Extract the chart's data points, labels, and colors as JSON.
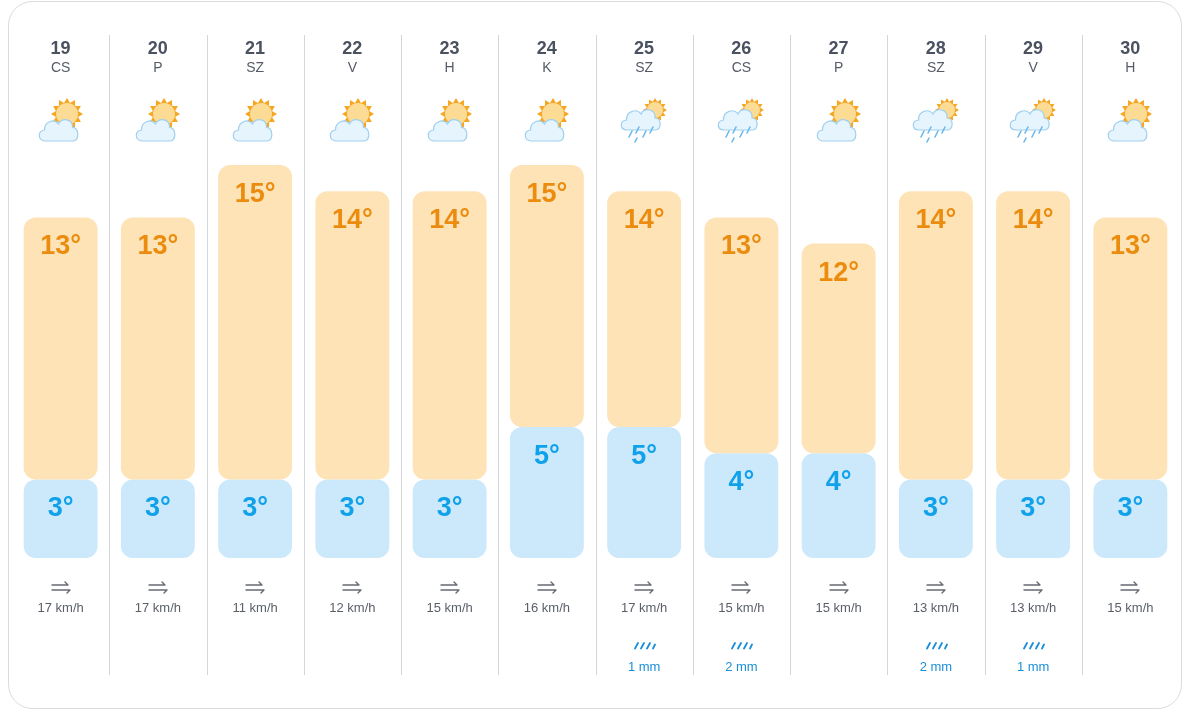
{
  "chart_data": {
    "type": "bar",
    "categories": [
      "19\nCS",
      "20\nP",
      "21\nSZ",
      "22\nV",
      "23\nH",
      "24\nK",
      "25\nSZ",
      "26\nCS",
      "27\nP",
      "28\nSZ",
      "29\nV",
      "30\nH"
    ],
    "stacked": true,
    "series": [
      {
        "color": "#cce8fb",
        "values": [
          3,
          3,
          3,
          3,
          3,
          5,
          5,
          4,
          4,
          3,
          3,
          3
        ],
        "value_labels": [
          "3°",
          "3°",
          "3°",
          "3°",
          "3°",
          "5°",
          "5°",
          "4°",
          "4°",
          "3°",
          "3°",
          "3°"
        ]
      },
      {
        "color": "#fde3b6",
        "values": [
          10,
          10,
          12,
          11,
          11,
          10,
          9,
          9,
          8,
          11,
          11,
          10
        ]
      }
    ],
    "totals": [
      "13°",
      "13°",
      "15°",
      "14°",
      "14°",
      "15°",
      "14°",
      "13°",
      "12°",
      "14°",
      "14°",
      "13°"
    ],
    "grid": "x",
    "tick_labels": "x",
    "annotations": [
      "17 km/h",
      "17 km/h",
      "11 km/h",
      "12 km/h",
      "15 km/h",
      "16 km/h",
      "17 km/h\n1 mm",
      "15 km/h\n2 mm",
      "15 km/h",
      "13 km/h\n2 mm",
      "13 km/h\n1 mm",
      "15 km/h"
    ]
  }
}
